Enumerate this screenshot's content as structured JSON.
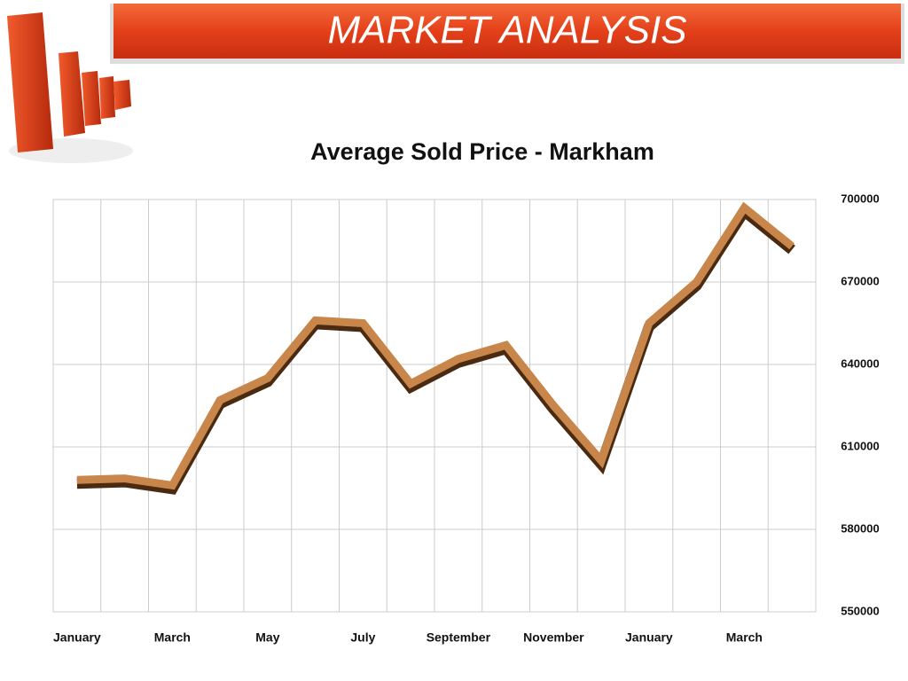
{
  "header": "MARKET ANALYSIS",
  "chart_data": {
    "type": "line",
    "title": "Average Sold Price - Markham",
    "categories": [
      "January",
      null,
      "March",
      null,
      "May",
      null,
      "July",
      null,
      "September",
      null,
      "November",
      null,
      "January",
      null,
      "March",
      null
    ],
    "values": [
      598000,
      598500,
      596000,
      627000,
      635000,
      656000,
      655000,
      633000,
      642000,
      647000,
      625000,
      605000,
      655000,
      670000,
      697000,
      683000
    ],
    "color": "#c8864a",
    "ylim": [
      550000,
      700000
    ],
    "yticks": [
      550000,
      580000,
      610000,
      640000,
      670000,
      700000
    ],
    "grid": true
  }
}
